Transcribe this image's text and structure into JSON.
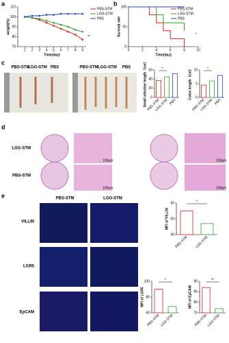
{
  "panel_labels": [
    "a",
    "b",
    "c",
    "d",
    "e"
  ],
  "chart_data": [
    {
      "type": "line",
      "xlabel": "Time(day)",
      "ylabel": "weight(%)",
      "x": [
        1,
        2,
        3,
        4,
        5,
        6,
        7,
        8,
        9
      ],
      "xlim": [
        0,
        9.5
      ],
      "xticks": [
        1,
        2,
        3,
        4,
        5,
        6,
        7,
        8,
        9
      ],
      "ylim": [
        70,
        110
      ],
      "yticks": [
        70,
        80,
        90,
        100,
        110
      ],
      "legend": "right",
      "annotation": "**",
      "series": [
        {
          "name": "PBS-STM",
          "color": "#e41a1c",
          "values": [
            100,
            99,
            97,
            94,
            91,
            88,
            85,
            82,
            77
          ]
        },
        {
          "name": "LGG-STM",
          "color": "#2ca02c",
          "values": [
            100,
            99,
            98,
            96,
            94,
            92,
            90,
            87,
            85
          ]
        },
        {
          "name": "PBS",
          "color": "#1f3fd0",
          "values": [
            100,
            101,
            101,
            102,
            102,
            103,
            103,
            103,
            103
          ]
        }
      ]
    },
    {
      "type": "line",
      "step": true,
      "xlabel": "Time(day)",
      "ylabel": "Survival rate",
      "xlim": [
        0,
        10
      ],
      "xticks": [
        0,
        2,
        4,
        6,
        8,
        10
      ],
      "ylim": [
        0,
        100
      ],
      "yticks": [
        0,
        50,
        100
      ],
      "legend": "upper right",
      "annotation": "*",
      "series": [
        {
          "name": "PBS-STM",
          "color": "#e41a1c",
          "x": [
            0,
            3,
            4,
            5,
            6,
            8
          ],
          "values": [
            100,
            80,
            60,
            40,
            20,
            0
          ]
        },
        {
          "name": "LGG-STM",
          "color": "#2ca02c",
          "x": [
            0,
            4,
            5,
            8
          ],
          "values": [
            100,
            80,
            60,
            40
          ]
        },
        {
          "name": "PBS",
          "color": "#1f3fd0",
          "x": [
            0,
            8
          ],
          "values": [
            100,
            100
          ]
        }
      ]
    },
    {
      "type": "bar",
      "ylabel": "Small intestine length（cm）",
      "categories": [
        "PBS-STM",
        "LGG-STM",
        "PBS"
      ],
      "values": [
        37,
        45,
        52
      ],
      "colors": [
        "#e41a1c",
        "#2ca02c",
        "#1f3fd0"
      ],
      "ylim": [
        0,
        60
      ],
      "yticks": [
        0,
        20,
        40,
        60
      ],
      "annotation": "*"
    },
    {
      "type": "bar",
      "ylabel": "Colon length（cm）",
      "categories": [
        "PBS-STM",
        "LGG-STM",
        "PBS"
      ],
      "values": [
        4.5,
        6,
        8
      ],
      "colors": [
        "#e41a1c",
        "#2ca02c",
        "#1f3fd0"
      ],
      "ylim": [
        0,
        10
      ],
      "yticks": [
        0,
        5,
        10
      ],
      "annotation": "*"
    },
    {
      "type": "bar",
      "ylabel": "MFI of VILLIN",
      "categories": [
        "PBS-STM",
        "LGG-STM"
      ],
      "values": [
        55,
        47
      ],
      "colors": [
        "#e41a1c",
        "#2ca02c"
      ],
      "ylim": [
        40,
        60
      ],
      "yticks": [
        40,
        50,
        60
      ],
      "annotation": "*"
    },
    {
      "type": "bar",
      "ylabel": "MFI of LGR5",
      "categories": [
        "PBS-STM",
        "LGG-STM"
      ],
      "values": [
        90,
        68
      ],
      "colors": [
        "#e41a1c",
        "#2ca02c"
      ],
      "ylim": [
        60,
        100
      ],
      "yticks": [
        60,
        80,
        100
      ],
      "annotation": "*"
    },
    {
      "type": "bar",
      "ylabel": "MFI of EpCAM",
      "categories": [
        "PBS-STM",
        "LGG-STM"
      ],
      "values": [
        87,
        77
      ],
      "colors": [
        "#e41a1c",
        "#2ca02c"
      ],
      "ylim": [
        75,
        90
      ],
      "yticks": [
        75,
        80,
        85,
        90
      ],
      "annotation": "**"
    }
  ],
  "photo_labels": [
    "PBS-STM",
    "LGG-STM",
    "PBS",
    "PBS-STM",
    "LGG-STM",
    "PBS"
  ],
  "histology": {
    "rows": [
      "LGG-STM",
      "PBS-STM"
    ],
    "scale_labels": [
      "100μm",
      "100μm",
      "100μm",
      "100μm"
    ]
  },
  "fluorescence": {
    "columns": [
      "PBS-STM",
      "LGG-STM"
    ],
    "rows": [
      "VILLIN",
      "LGR5",
      "EpCAM"
    ]
  }
}
